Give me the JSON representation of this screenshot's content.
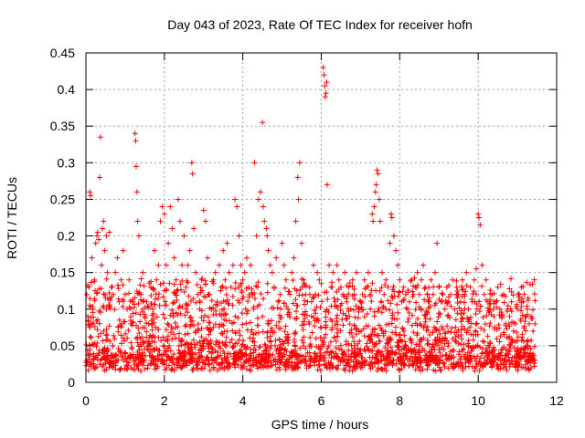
{
  "chart_data": {
    "type": "scatter",
    "title": "Day 043 of 2023, Rate Of TEC Index for receiver hofn",
    "xlabel": "GPS time / hours",
    "ylabel": "ROTI / TECUs",
    "xlim": [
      0,
      12
    ],
    "ylim": [
      0,
      0.45
    ],
    "x_ticks": [
      0,
      2,
      4,
      6,
      8,
      10,
      12
    ],
    "y_ticks": [
      0,
      0.05,
      0.1,
      0.15,
      0.2,
      0.25,
      0.3,
      0.35,
      0.4,
      0.45
    ],
    "x_tick_labels": [
      "0",
      "2",
      "4",
      "6",
      "8",
      "10",
      "12"
    ],
    "y_tick_labels": [
      "0",
      "0.05",
      "0.1",
      "0.15",
      "0.2",
      "0.25",
      "0.3",
      "0.35",
      "0.4",
      "0.45"
    ],
    "grid": true,
    "marker": "+",
    "color": "#ff0000",
    "series": [
      {
        "name": "ROTI",
        "points": [
          [
            0.02,
            0.12
          ],
          [
            0.05,
            0.09
          ],
          [
            0.08,
            0.13
          ],
          [
            0.1,
            0.26
          ],
          [
            0.12,
            0.255
          ],
          [
            0.15,
            0.17
          ],
          [
            0.18,
            0.1
          ],
          [
            0.22,
            0.14
          ],
          [
            0.25,
            0.19
          ],
          [
            0.28,
            0.2
          ],
          [
            0.3,
            0.205
          ],
          [
            0.33,
            0.195
          ],
          [
            0.35,
            0.28
          ],
          [
            0.37,
            0.335
          ],
          [
            0.4,
            0.16
          ],
          [
            0.42,
            0.21
          ],
          [
            0.45,
            0.22
          ],
          [
            0.48,
            0.18
          ],
          [
            0.52,
            0.2
          ],
          [
            0.55,
            0.15
          ],
          [
            0.6,
            0.205
          ],
          [
            0.65,
            0.13
          ],
          [
            0.7,
            0.12
          ],
          [
            0.75,
            0.15
          ],
          [
            0.8,
            0.17
          ],
          [
            0.85,
            0.11
          ],
          [
            0.9,
            0.14
          ],
          [
            0.95,
            0.18
          ],
          [
            1.0,
            0.12
          ],
          [
            1.05,
            0.1
          ],
          [
            1.1,
            0.14
          ],
          [
            1.15,
            0.08
          ],
          [
            1.2,
            0.11
          ],
          [
            1.25,
            0.34
          ],
          [
            1.27,
            0.33
          ],
          [
            1.28,
            0.295
          ],
          [
            1.3,
            0.26
          ],
          [
            1.32,
            0.22
          ],
          [
            1.35,
            0.2
          ],
          [
            1.4,
            0.12
          ],
          [
            1.45,
            0.15
          ],
          [
            1.5,
            0.09
          ],
          [
            1.55,
            0.11
          ],
          [
            1.6,
            0.08
          ],
          [
            1.65,
            0.13
          ],
          [
            1.7,
            0.1
          ],
          [
            1.75,
            0.18
          ],
          [
            1.8,
            0.14
          ],
          [
            1.85,
            0.16
          ],
          [
            1.9,
            0.22
          ],
          [
            1.95,
            0.24
          ],
          [
            2.0,
            0.23
          ],
          [
            2.05,
            0.16
          ],
          [
            2.1,
            0.19
          ],
          [
            2.15,
            0.24
          ],
          [
            2.2,
            0.21
          ],
          [
            2.25,
            0.17
          ],
          [
            2.3,
            0.14
          ],
          [
            2.35,
            0.25
          ],
          [
            2.4,
            0.22
          ],
          [
            2.45,
            0.16
          ],
          [
            2.5,
            0.2
          ],
          [
            2.55,
            0.13
          ],
          [
            2.6,
            0.16
          ],
          [
            2.65,
            0.18
          ],
          [
            2.7,
            0.3
          ],
          [
            2.72,
            0.285
          ],
          [
            2.75,
            0.21
          ],
          [
            2.8,
            0.15
          ],
          [
            2.85,
            0.12
          ],
          [
            2.9,
            0.1
          ],
          [
            2.95,
            0.14
          ],
          [
            3.0,
            0.235
          ],
          [
            3.05,
            0.22
          ],
          [
            3.1,
            0.17
          ],
          [
            3.15,
            0.12
          ],
          [
            3.2,
            0.1
          ],
          [
            3.25,
            0.14
          ],
          [
            3.3,
            0.15
          ],
          [
            3.35,
            0.11
          ],
          [
            3.4,
            0.16
          ],
          [
            3.45,
            0.13
          ],
          [
            3.5,
            0.18
          ],
          [
            3.55,
            0.14
          ],
          [
            3.6,
            0.19
          ],
          [
            3.65,
            0.15
          ],
          [
            3.7,
            0.13
          ],
          [
            3.75,
            0.16
          ],
          [
            3.8,
            0.25
          ],
          [
            3.85,
            0.24
          ],
          [
            3.9,
            0.2
          ],
          [
            3.95,
            0.16
          ],
          [
            4.0,
            0.14
          ],
          [
            4.05,
            0.15
          ],
          [
            4.1,
            0.17
          ],
          [
            4.15,
            0.13
          ],
          [
            4.2,
            0.16
          ],
          [
            4.25,
            0.12
          ],
          [
            4.3,
            0.3
          ],
          [
            4.35,
            0.2
          ],
          [
            4.4,
            0.25
          ],
          [
            4.45,
            0.26
          ],
          [
            4.5,
            0.355
          ],
          [
            4.52,
            0.24
          ],
          [
            4.55,
            0.22
          ],
          [
            4.6,
            0.21
          ],
          [
            4.62,
            0.2
          ],
          [
            4.65,
            0.18
          ],
          [
            4.7,
            0.16
          ],
          [
            4.75,
            0.15
          ],
          [
            4.8,
            0.13
          ],
          [
            4.85,
            0.17
          ],
          [
            4.9,
            0.11
          ],
          [
            4.95,
            0.12
          ],
          [
            5.0,
            0.19
          ],
          [
            5.05,
            0.16
          ],
          [
            5.1,
            0.14
          ],
          [
            5.15,
            0.1
          ],
          [
            5.2,
            0.12
          ],
          [
            5.25,
            0.15
          ],
          [
            5.3,
            0.17
          ],
          [
            5.35,
            0.22
          ],
          [
            5.4,
            0.28
          ],
          [
            5.42,
            0.25
          ],
          [
            5.45,
            0.3
          ],
          [
            5.5,
            0.19
          ],
          [
            5.55,
            0.14
          ],
          [
            5.6,
            0.12
          ],
          [
            5.65,
            0.11
          ],
          [
            5.7,
            0.13
          ],
          [
            5.75,
            0.09
          ],
          [
            5.8,
            0.16
          ],
          [
            5.85,
            0.12
          ],
          [
            5.9,
            0.15
          ],
          [
            5.95,
            0.14
          ],
          [
            6.0,
            0.135
          ],
          [
            6.05,
            0.43
          ],
          [
            6.07,
            0.42
          ],
          [
            6.09,
            0.405
          ],
          [
            6.1,
            0.39
          ],
          [
            6.12,
            0.395
          ],
          [
            6.14,
            0.41
          ],
          [
            6.15,
            0.27
          ],
          [
            6.2,
            0.16
          ],
          [
            6.25,
            0.13
          ],
          [
            6.3,
            0.15
          ],
          [
            6.35,
            0.11
          ],
          [
            6.4,
            0.16
          ],
          [
            6.45,
            0.14
          ],
          [
            6.5,
            0.13
          ],
          [
            6.55,
            0.12
          ],
          [
            6.6,
            0.15
          ],
          [
            6.65,
            0.11
          ],
          [
            6.7,
            0.13
          ],
          [
            6.75,
            0.1
          ],
          [
            6.8,
            0.14
          ],
          [
            6.85,
            0.12
          ],
          [
            6.9,
            0.15
          ],
          [
            6.95,
            0.1
          ],
          [
            7.0,
            0.11
          ],
          [
            7.05,
            0.12
          ],
          [
            7.1,
            0.14
          ],
          [
            7.15,
            0.13
          ],
          [
            7.2,
            0.15
          ],
          [
            7.25,
            0.12
          ],
          [
            7.3,
            0.23
          ],
          [
            7.32,
            0.22
          ],
          [
            7.35,
            0.24
          ],
          [
            7.38,
            0.26
          ],
          [
            7.4,
            0.27
          ],
          [
            7.42,
            0.29
          ],
          [
            7.45,
            0.285
          ],
          [
            7.48,
            0.25
          ],
          [
            7.5,
            0.22
          ],
          [
            7.55,
            0.15
          ],
          [
            7.6,
            0.12
          ],
          [
            7.65,
            0.14
          ],
          [
            7.7,
            0.13
          ],
          [
            7.75,
            0.19
          ],
          [
            7.78,
            0.23
          ],
          [
            7.8,
            0.225
          ],
          [
            7.85,
            0.2
          ],
          [
            7.9,
            0.18
          ],
          [
            7.95,
            0.16
          ],
          [
            8.0,
            0.14
          ],
          [
            8.05,
            0.11
          ],
          [
            8.1,
            0.13
          ],
          [
            8.15,
            0.12
          ],
          [
            8.2,
            0.1
          ],
          [
            8.25,
            0.11
          ],
          [
            8.3,
            0.14
          ],
          [
            8.35,
            0.12
          ],
          [
            8.4,
            0.13
          ],
          [
            8.45,
            0.15
          ],
          [
            8.5,
            0.12
          ],
          [
            8.55,
            0.14
          ],
          [
            8.6,
            0.16
          ],
          [
            8.65,
            0.13
          ],
          [
            8.7,
            0.12
          ],
          [
            8.75,
            0.11
          ],
          [
            8.8,
            0.14
          ],
          [
            8.85,
            0.12
          ],
          [
            8.9,
            0.15
          ],
          [
            8.95,
            0.19
          ],
          [
            9.0,
            0.13
          ],
          [
            9.05,
            0.11
          ],
          [
            9.1,
            0.12
          ],
          [
            9.15,
            0.1
          ],
          [
            9.2,
            0.13
          ],
          [
            9.25,
            0.11
          ],
          [
            9.3,
            0.12
          ],
          [
            9.35,
            0.14
          ],
          [
            9.4,
            0.1
          ],
          [
            9.45,
            0.13
          ],
          [
            9.5,
            0.12
          ],
          [
            9.55,
            0.11
          ],
          [
            9.6,
            0.14
          ],
          [
            9.65,
            0.12
          ],
          [
            9.7,
            0.15
          ],
          [
            9.75,
            0.1
          ],
          [
            9.8,
            0.13
          ],
          [
            9.85,
            0.11
          ],
          [
            9.9,
            0.14
          ],
          [
            9.95,
            0.155
          ],
          [
            10.0,
            0.23
          ],
          [
            10.02,
            0.225
          ],
          [
            10.05,
            0.215
          ],
          [
            10.1,
            0.16
          ],
          [
            10.15,
            0.12
          ],
          [
            10.2,
            0.14
          ],
          [
            10.25,
            0.11
          ],
          [
            10.3,
            0.1
          ],
          [
            10.35,
            0.12
          ],
          [
            10.4,
            0.09
          ],
          [
            10.45,
            0.11
          ],
          [
            10.5,
            0.13
          ],
          [
            10.55,
            0.1
          ],
          [
            10.6,
            0.09
          ],
          [
            10.65,
            0.12
          ],
          [
            10.7,
            0.08
          ],
          [
            10.75,
            0.1
          ],
          [
            10.8,
            0.09
          ],
          [
            10.85,
            0.11
          ],
          [
            10.9,
            0.07
          ],
          [
            10.95,
            0.08
          ],
          [
            11.0,
            0.1
          ],
          [
            11.05,
            0.12
          ],
          [
            11.1,
            0.13
          ],
          [
            11.15,
            0.11
          ],
          [
            11.2,
            0.09
          ],
          [
            11.25,
            0.1
          ],
          [
            11.3,
            0.08
          ],
          [
            11.35,
            0.09
          ],
          [
            11.4,
            0.07
          ],
          [
            11.45,
            0.08
          ]
        ]
      }
    ],
    "base_band_note": "dense band of points between roughly 0.01 and 0.12 TECUs across 0 to 11.5 hours"
  }
}
